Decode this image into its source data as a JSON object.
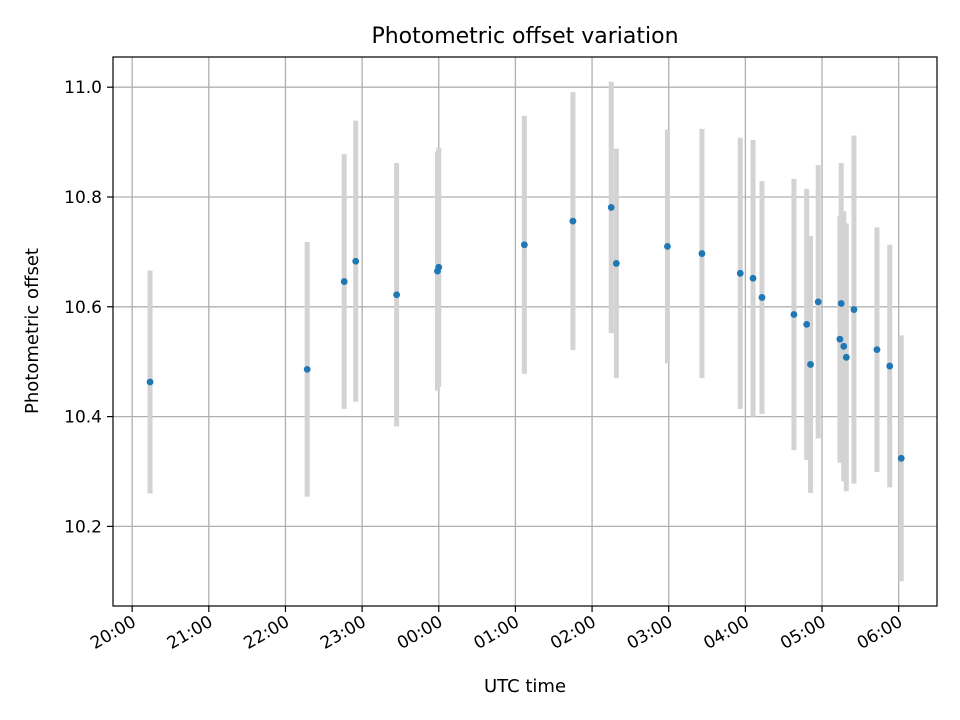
{
  "chart_data": {
    "type": "scatter",
    "title": "Photometric offset variation",
    "xlabel": "UTC time",
    "ylabel": "Photometric offset",
    "x_axis": "time",
    "xlim": [
      "19:45",
      "06:30"
    ],
    "ylim": [
      10.055,
      11.055
    ],
    "xticks": [
      "20:00",
      "21:00",
      "22:00",
      "23:00",
      "00:00",
      "01:00",
      "02:00",
      "03:00",
      "04:00",
      "05:00",
      "06:00"
    ],
    "yticks": [
      10.2,
      10.4,
      10.6,
      10.8,
      11.0
    ],
    "ytick_labels": [
      "10.2",
      "10.4",
      "10.6",
      "10.8",
      "11.0"
    ],
    "grid": true,
    "point_color": "#1f77b4",
    "errorbar_color": "#d3d3d3",
    "points": [
      {
        "time": "20:14",
        "y": 10.463,
        "err": 0.203
      },
      {
        "time": "22:17",
        "y": 10.486,
        "err": 0.232
      },
      {
        "time": "22:46",
        "y": 10.646,
        "err": 0.232
      },
      {
        "time": "22:55",
        "y": 10.683,
        "err": 0.256
      },
      {
        "time": "23:27",
        "y": 10.622,
        "err": 0.24
      },
      {
        "time": "23:59",
        "y": 10.665,
        "err": 0.218
      },
      {
        "time": "00:00",
        "y": 10.672,
        "err": 0.218
      },
      {
        "time": "01:07",
        "y": 10.713,
        "err": 0.235
      },
      {
        "time": "01:45",
        "y": 10.756,
        "err": 0.235
      },
      {
        "time": "02:15",
        "y": 10.781,
        "err": 0.229
      },
      {
        "time": "02:19",
        "y": 10.679,
        "err": 0.209
      },
      {
        "time": "02:59",
        "y": 10.71,
        "err": 0.213
      },
      {
        "time": "03:26",
        "y": 10.697,
        "err": 0.227
      },
      {
        "time": "03:56",
        "y": 10.661,
        "err": 0.247
      },
      {
        "time": "04:06",
        "y": 10.652,
        "err": 0.252
      },
      {
        "time": "04:13",
        "y": 10.617,
        "err": 0.212
      },
      {
        "time": "04:38",
        "y": 10.586,
        "err": 0.247
      },
      {
        "time": "04:48",
        "y": 10.568,
        "err": 0.247
      },
      {
        "time": "04:51",
        "y": 10.495,
        "err": 0.234
      },
      {
        "time": "04:57",
        "y": 10.609,
        "err": 0.249
      },
      {
        "time": "05:14",
        "y": 10.541,
        "err": 0.225
      },
      {
        "time": "05:15",
        "y": 10.606,
        "err": 0.256
      },
      {
        "time": "05:17",
        "y": 10.528,
        "err": 0.246
      },
      {
        "time": "05:19",
        "y": 10.508,
        "err": 0.244
      },
      {
        "time": "05:25",
        "y": 10.595,
        "err": 0.317
      },
      {
        "time": "05:43",
        "y": 10.522,
        "err": 0.223
      },
      {
        "time": "05:53",
        "y": 10.492,
        "err": 0.221
      },
      {
        "time": "06:02",
        "y": 10.324,
        "err": 0.224
      }
    ]
  }
}
